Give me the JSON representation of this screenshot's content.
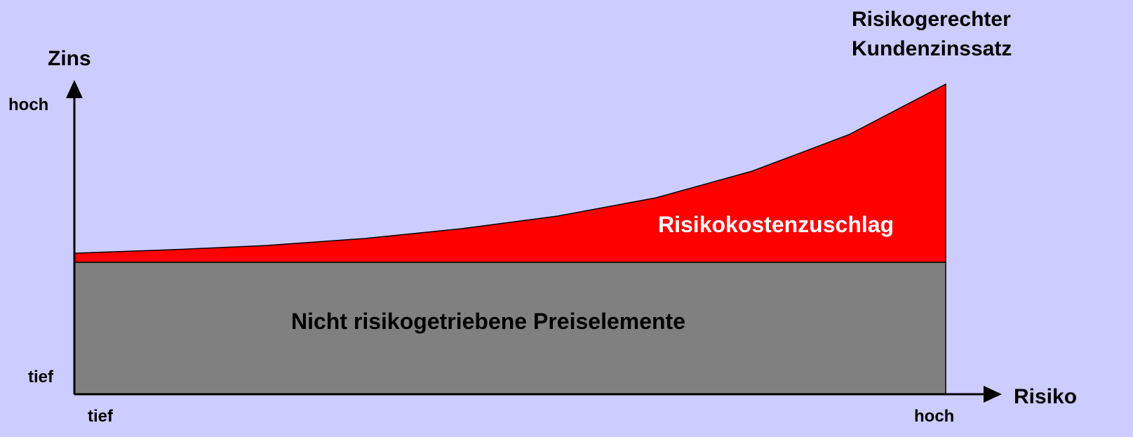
{
  "y_axis": {
    "label": "Zins",
    "high": "hoch",
    "low": "tief"
  },
  "x_axis": {
    "label": "Risiko",
    "low": "tief",
    "high": "hoch"
  },
  "curve_label": [
    "Risikogerechter",
    "Kundenzinssatz"
  ],
  "regions": {
    "risk": "Risikokostenzuschlag",
    "base": "Nicht risikogetriebene Preiselemente"
  }
}
